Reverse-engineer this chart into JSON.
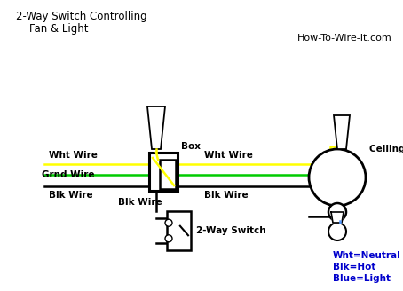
{
  "title_line1": "2-Way Switch Controlling",
  "title_line2": "    Fan & Light",
  "watermark": "How-To-Wire-It.com",
  "bg_color": "#ffffff",
  "wire_colors": {
    "white": "#ffff00",
    "green": "#00cc00",
    "black": "#000000",
    "blue": "#5599ff"
  },
  "labels": {
    "wht_wire_left": "Wht Wire",
    "grnd_wire": "Grnd Wire",
    "blk_wire_left": "Blk Wire",
    "box": "Box",
    "wht_wire_right": "Wht Wire",
    "blk_wire_right": "Blk Wire",
    "blk_wire_switch": "Blk Wire",
    "switch_label": "2-Way Switch",
    "ceiling_fan": "Ceiling Fan",
    "legend": "Wht=Neutral\nBlk=Hot\nBlue=Light"
  },
  "figsize": [
    4.54,
    3.28
  ],
  "dpi": 100
}
